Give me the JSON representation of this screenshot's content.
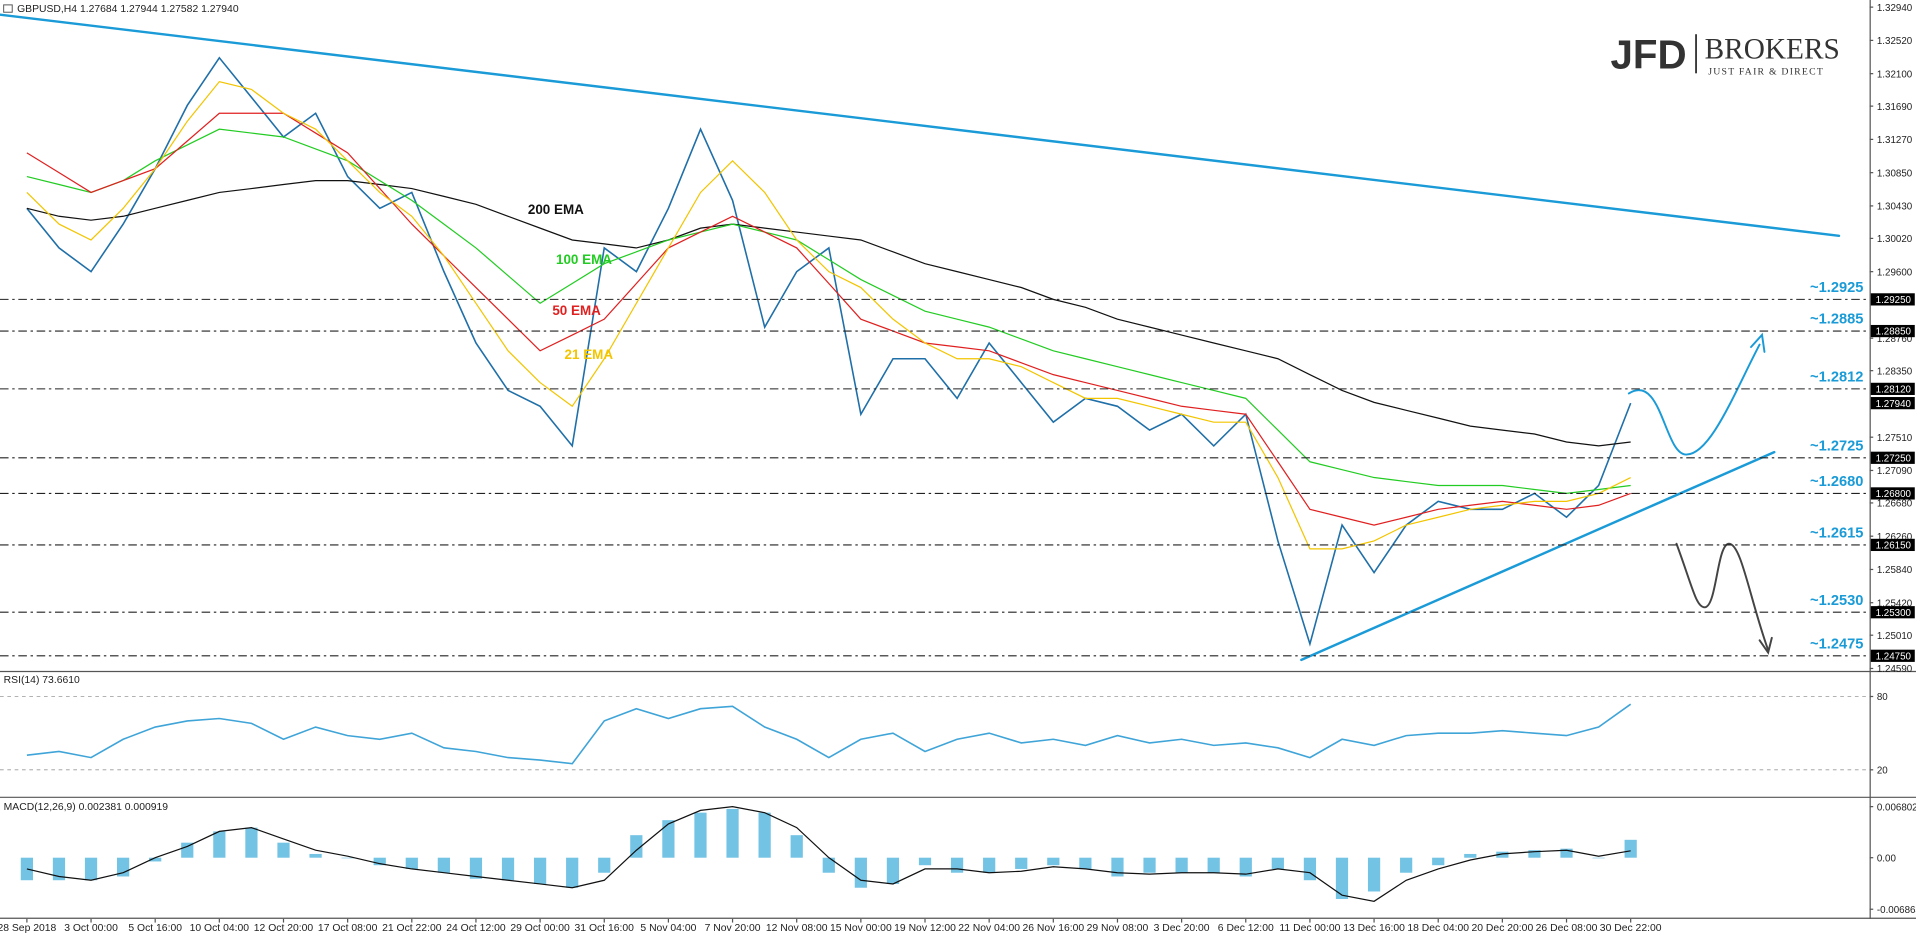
{
  "chart_data": [
    {
      "type": "line",
      "title": "GBPUSD,H4 1.27684 1.27944 1.27582 1.27940",
      "categories": [
        "28 Sep 2018",
        null,
        "3 Oct 00:00",
        null,
        "5 Oct 16:00",
        null,
        "10 Oct 04:00",
        null,
        "12 Oct 20:00",
        null,
        "17 Oct 08:00",
        null,
        "21 Oct 22:00",
        null,
        "24 Oct 12:00",
        null,
        "29 Oct 00:00",
        null,
        "31 Oct 16:00",
        null,
        "5 Nov 04:00",
        null,
        "7 Nov 20:00",
        null,
        "12 Nov 08:00",
        null,
        "15 Nov 00:00",
        null,
        "19 Nov 12:00",
        null,
        "22 Nov 04:00",
        null,
        "26 Nov 16:00",
        null,
        "29 Nov 08:00",
        null,
        "3 Dec 20:00",
        null,
        "6 Dec 12:00",
        null,
        "11 Dec 00:00",
        null,
        "13 Dec 16:00",
        null,
        "18 Dec 04:00",
        null,
        "20 Dec 20:00",
        null,
        "26 Dec 08:00",
        null,
        "30 Dec 22:00"
      ],
      "series": [
        {
          "color": "#1f6fa8",
          "values": [
            1.304,
            1.299,
            1.296,
            1.302,
            1.309,
            1.317,
            1.323,
            1.318,
            1.313,
            1.316,
            1.308,
            1.304,
            1.306,
            1.296,
            1.287,
            1.281,
            1.279,
            1.274,
            1.299,
            1.296,
            1.304,
            1.314,
            1.305,
            1.289,
            1.296,
            1.299,
            1.278,
            1.285,
            1.285,
            1.28,
            1.287,
            1.282,
            1.277,
            1.28,
            1.279,
            1.276,
            1.278,
            1.274,
            1.278,
            1.262,
            1.249,
            1.264,
            1.258,
            1.264,
            1.267,
            1.266,
            1.266,
            1.268,
            1.265,
            1.269,
            1.2794
          ]
        },
        {
          "name": "200 EMA",
          "color": "#111111",
          "values": [
            1.304,
            1.303,
            1.3025,
            1.303,
            1.304,
            1.305,
            1.306,
            1.3065,
            1.307,
            1.3075,
            1.3075,
            1.307,
            1.3065,
            1.3055,
            1.3045,
            1.303,
            1.3015,
            1.3,
            1.2995,
            1.299,
            1.3,
            1.3015,
            1.302,
            1.3015,
            1.301,
            1.3005,
            1.3,
            1.2985,
            1.297,
            1.296,
            1.295,
            1.294,
            1.2925,
            1.2915,
            1.29,
            1.289,
            1.288,
            1.287,
            1.286,
            1.285,
            1.283,
            1.281,
            1.2795,
            1.2785,
            1.2775,
            1.2765,
            1.276,
            1.2755,
            1.2745,
            1.274,
            1.2745
          ]
        },
        {
          "name": "100 EMA",
          "color": "#22cc22",
          "values": [
            1.308,
            1.307,
            1.306,
            1.3075,
            1.31,
            1.312,
            1.314,
            1.3135,
            1.313,
            1.3115,
            1.31,
            1.3075,
            1.305,
            1.302,
            1.299,
            1.2955,
            1.292,
            1.2945,
            1.297,
            1.2985,
            1.3,
            1.301,
            1.302,
            1.301,
            1.3,
            1.2975,
            1.295,
            1.293,
            1.291,
            1.29,
            1.289,
            1.2875,
            1.286,
            1.285,
            1.284,
            1.283,
            1.282,
            1.281,
            1.28,
            1.276,
            1.272,
            1.271,
            1.27,
            1.2695,
            1.269,
            1.269,
            1.269,
            1.2685,
            1.268,
            1.2685,
            1.269
          ]
        },
        {
          "name": "50 EMA",
          "color": "#e02020",
          "values": [
            1.311,
            1.3085,
            1.306,
            1.3075,
            1.309,
            1.3125,
            1.316,
            1.316,
            1.316,
            1.3135,
            1.311,
            1.3065,
            1.302,
            1.298,
            1.294,
            1.29,
            1.286,
            1.288,
            1.29,
            1.2945,
            1.299,
            1.301,
            1.303,
            1.301,
            1.299,
            1.2945,
            1.29,
            1.2885,
            1.287,
            1.2865,
            1.286,
            1.2845,
            1.283,
            1.282,
            1.281,
            1.28,
            1.279,
            1.2785,
            1.278,
            1.272,
            1.266,
            1.265,
            1.264,
            1.265,
            1.266,
            1.2665,
            1.267,
            1.2665,
            1.266,
            1.2665,
            1.268
          ]
        },
        {
          "name": "21 EMA",
          "color": "#f2c500",
          "values": [
            1.306,
            1.302,
            1.3,
            1.304,
            1.309,
            1.315,
            1.32,
            1.319,
            1.316,
            1.314,
            1.31,
            1.306,
            1.303,
            1.298,
            1.292,
            1.286,
            1.282,
            1.279,
            1.285,
            1.292,
            1.299,
            1.306,
            1.31,
            1.306,
            1.3,
            1.296,
            1.294,
            1.29,
            1.287,
            1.285,
            1.285,
            1.284,
            1.282,
            1.28,
            1.28,
            1.279,
            1.278,
            1.277,
            1.277,
            1.27,
            1.261,
            1.261,
            1.262,
            1.264,
            1.265,
            1.266,
            1.2665,
            1.267,
            1.267,
            1.268,
            1.27
          ]
        }
      ],
      "ylim": [
        1.2456,
        1.3303
      ],
      "yticks": [
        {
          "value": 1.3294,
          "label": "1.32940"
        },
        {
          "value": 1.3252,
          "label": "1.32520"
        },
        {
          "value": 1.321,
          "label": "1.32100"
        },
        {
          "value": 1.3169,
          "label": "1.31690"
        },
        {
          "value": 1.3127,
          "label": "1.31270"
        },
        {
          "value": 1.3085,
          "label": "1.30850"
        },
        {
          "value": 1.3043,
          "label": "1.30430"
        },
        {
          "value": 1.3002,
          "label": "1.30020"
        },
        {
          "value": 1.296,
          "label": "1.29600"
        },
        {
          "value": 1.2876,
          "label": "1.28760"
        },
        {
          "value": 1.2835,
          "label": "1.28350"
        },
        {
          "value": 1.2751,
          "label": "1.27510"
        },
        {
          "value": 1.2709,
          "label": "1.27090"
        },
        {
          "value": 1.2668,
          "label": "1.26680"
        },
        {
          "value": 1.2626,
          "label": "1.26260"
        },
        {
          "value": 1.2584,
          "label": "1.25840"
        },
        {
          "value": 1.2542,
          "label": "1.25420"
        },
        {
          "value": 1.2501,
          "label": "1.25010"
        },
        {
          "value": 1.2459,
          "label": "1.24590"
        }
      ],
      "levels": [
        {
          "value": 1.2925,
          "label": "~1.2925",
          "axis_label": "1.29250"
        },
        {
          "value": 1.2885,
          "label": "~1.2885",
          "axis_label": "1.28850"
        },
        {
          "value": 1.2812,
          "label": "~1.2812",
          "axis_label": "1.28120"
        },
        {
          "value": 1.2725,
          "label": "~1.2725",
          "axis_label": "1.27250"
        },
        {
          "value": 1.268,
          "label": "~1.2680",
          "axis_label": "1.26800"
        },
        {
          "value": 1.2615,
          "label": "~1.2615",
          "axis_label": "1.26150"
        },
        {
          "value": 1.253,
          "label": "~1.2530",
          "axis_label": "1.25300"
        },
        {
          "value": 1.2475,
          "label": "~1.2475",
          "axis_label": "1.24750"
        }
      ],
      "last_price": {
        "value": 1.2794,
        "label": "1.27940"
      }
    },
    {
      "type": "line",
      "title": "RSI(14) 73.6610",
      "series": [
        {
          "color": "#3fa4d8",
          "values": [
            32,
            35,
            30,
            45,
            55,
            60,
            62,
            58,
            45,
            55,
            48,
            45,
            50,
            38,
            35,
            30,
            28,
            25,
            60,
            70,
            62,
            70,
            72,
            55,
            45,
            30,
            45,
            50,
            35,
            45,
            50,
            42,
            45,
            40,
            48,
            42,
            45,
            40,
            42,
            38,
            30,
            45,
            40,
            48,
            50,
            50,
            52,
            50,
            48,
            55,
            73.661
          ]
        }
      ],
      "ylim": [
        0,
        100
      ],
      "yticks": [
        20,
        80
      ]
    },
    {
      "type": "macd",
      "title": "MACD(12,26,9) 0.002381 0.000919",
      "series": [
        {
          "type": "bar",
          "color": "#5bb8e0",
          "values": [
            -0.003,
            -0.003,
            -0.003,
            -0.0025,
            -0.0005,
            0.002,
            0.0035,
            0.004,
            0.002,
            0.0005,
            0.0,
            -0.001,
            -0.0015,
            -0.002,
            -0.0028,
            -0.003,
            -0.0035,
            -0.004,
            -0.002,
            0.003,
            0.005,
            0.006,
            0.0065,
            0.006,
            0.003,
            -0.002,
            -0.004,
            -0.0035,
            -0.001,
            -0.002,
            -0.002,
            -0.0015,
            -0.001,
            -0.0015,
            -0.0025,
            -0.002,
            -0.002,
            -0.002,
            -0.0025,
            -0.0015,
            -0.003,
            -0.0055,
            -0.0045,
            -0.002,
            -0.001,
            0.0005,
            0.0008,
            0.001,
            0.0012,
            0.0,
            0.002381
          ]
        },
        {
          "type": "line",
          "color": "#111111",
          "values": [
            -0.0015,
            -0.0025,
            -0.003,
            -0.002,
            0.0,
            0.0015,
            0.0035,
            0.004,
            0.0025,
            0.001,
            0.0002,
            -0.0008,
            -0.0015,
            -0.002,
            -0.0025,
            -0.003,
            -0.0035,
            -0.004,
            -0.003,
            0.001,
            0.0045,
            0.0063,
            0.0068,
            0.006,
            0.004,
            0.0,
            -0.003,
            -0.0035,
            -0.0015,
            -0.0015,
            -0.002,
            -0.0018,
            -0.0012,
            -0.0015,
            -0.002,
            -0.0022,
            -0.002,
            -0.002,
            -0.0022,
            -0.0015,
            -0.002,
            -0.005,
            -0.0058,
            -0.003,
            -0.0015,
            -0.0003,
            0.0005,
            0.0008,
            0.001,
            0.0002,
            0.000919
          ]
        }
      ],
      "ylim": [
        -0.0075,
        0.0078
      ],
      "yticks": [
        0.006802,
        {
          "value": 0,
          "label": "0.00"
        },
        -0.006863
      ]
    }
  ],
  "logo": {
    "brand": "JFD",
    "name": "BROKERS",
    "tagline": "JUST FAIR & DIRECT"
  }
}
